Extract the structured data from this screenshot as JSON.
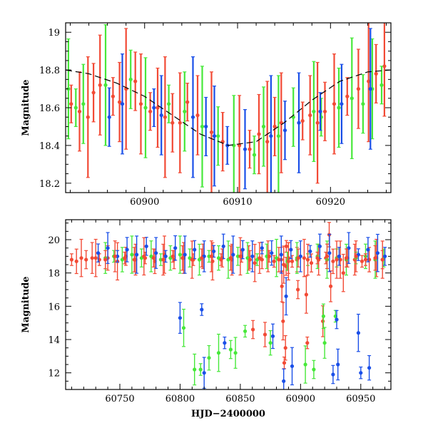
{
  "chart_data": [
    {
      "type": "scatter",
      "panel": "top",
      "xlabel": "",
      "ylabel": "Magnitude",
      "xlim": [
        60891.5,
        60926.5
      ],
      "ylim": [
        19.05,
        18.15
      ],
      "y_inverted": true,
      "x_ticks": [
        60900,
        60910,
        60920
      ],
      "x_tick_labels": [
        "60900",
        "60910",
        "60920"
      ],
      "y_ticks": [
        18.2,
        18.4,
        18.6,
        18.8,
        19.0
      ],
      "y_tick_labels": [
        "18.2",
        "18.4",
        "18.6",
        "18.8",
        "19"
      ],
      "colors": {
        "red": "#f24a35",
        "green": "#47e83a",
        "blue": "#1a4fe8",
        "model": "#000000"
      },
      "series": [
        {
          "name": "red",
          "color": "#f24a35",
          "x": [
            60892.1,
            60893.0,
            60893.9,
            60894.5,
            60895.2,
            60896.6,
            60897.3,
            60898.0,
            60899.0,
            60899.6,
            60900.6,
            60901.4,
            60902.2,
            60903.0,
            60903.8,
            60904.6,
            60905.7,
            60907.2,
            60908.4,
            60910.2,
            60911.3,
            60912.3,
            60913.2,
            60914.0,
            60914.7,
            60917.0,
            60917.8,
            60918.6,
            60919.4,
            60920.4,
            60921.8,
            60923.0,
            60924.1,
            60924.9,
            60925.8
          ],
          "y": [
            18.62,
            18.58,
            18.55,
            18.68,
            18.72,
            18.66,
            18.63,
            18.7,
            18.74,
            18.62,
            18.58,
            18.6,
            18.55,
            18.52,
            18.52,
            18.63,
            18.56,
            18.47,
            18.42,
            18.4,
            18.38,
            18.46,
            18.42,
            18.5,
            18.52,
            18.53,
            18.56,
            18.52,
            18.58,
            18.62,
            18.66,
            18.7,
            18.74,
            18.78,
            18.82
          ]
        },
        {
          "name": "green",
          "color": "#47e83a",
          "x": [
            60891.8,
            60892.6,
            60893.4,
            60895.8,
            60898.5,
            60900.1,
            60902.6,
            60904.3,
            60906.2,
            60907.9,
            60909.6,
            60911.8,
            60912.8,
            60914.4,
            60916.0,
            60918.2,
            60919.0,
            60920.9,
            60922.3,
            60923.5,
            60924.5,
            60925.5
          ],
          "y": [
            18.7,
            18.6,
            18.62,
            18.72,
            18.75,
            18.6,
            18.62,
            18.58,
            18.5,
            18.45,
            18.4,
            18.35,
            18.5,
            18.45,
            18.55,
            18.58,
            18.55,
            18.6,
            18.65,
            18.62,
            18.7,
            18.72
          ]
        },
        {
          "name": "blue",
          "color": "#1a4fe8",
          "x": [
            60896.2,
            60897.6,
            60901.0,
            60901.8,
            60905.2,
            60906.6,
            60907.5,
            60908.9,
            60910.8,
            60913.6,
            60915.1,
            60916.6,
            60918.9,
            60921.2,
            60924.3
          ],
          "y": [
            18.55,
            18.62,
            18.6,
            18.56,
            18.55,
            18.5,
            18.45,
            18.4,
            18.38,
            18.45,
            18.48,
            18.52,
            18.58,
            18.62,
            18.7
          ]
        },
        {
          "name": "model",
          "color": "#000000",
          "style": "dashed",
          "type": "line",
          "x": [
            60891.5,
            60894,
            60897,
            60900,
            60903,
            60906,
            60909,
            60912,
            60915,
            60918,
            60921,
            60924,
            60926.5
          ],
          "y": [
            18.8,
            18.78,
            18.73,
            18.66,
            18.56,
            18.46,
            18.4,
            18.42,
            18.52,
            18.64,
            18.74,
            18.79,
            18.8
          ]
        }
      ]
    },
    {
      "type": "scatter",
      "panel": "bottom",
      "xlabel": "HJD−2400000",
      "ylabel": "Magnitude",
      "xlim": [
        60705,
        60975
      ],
      "ylim": [
        21.2,
        11.0
      ],
      "y_inverted": true,
      "x_ticks": [
        60750,
        60800,
        60850,
        60900,
        60950
      ],
      "x_tick_labels": [
        "60750",
        "60800",
        "60850",
        "60900",
        "60950"
      ],
      "y_ticks": [
        12,
        14,
        16,
        18,
        20
      ],
      "y_tick_labels": [
        "12",
        "14",
        "16",
        "18",
        "20"
      ],
      "series": [
        {
          "name": "red",
          "color": "#f24a35",
          "x": [
            60710,
            60714,
            60718,
            60722,
            60727,
            60733,
            60740,
            60748,
            60755,
            60763,
            60771,
            60779,
            60787,
            60795,
            60803,
            60811,
            60819,
            60827,
            60835,
            60843,
            60851,
            60857,
            60862,
            60868,
            60873,
            60878,
            60884,
            60886,
            60888,
            60890,
            60893,
            60897,
            60903,
            60909,
            60915,
            60921,
            60927,
            60933,
            60939,
            60945,
            60951,
            60957,
            60963,
            60968,
            60884.5,
            60886.5,
            60887.5,
            60885.5,
            60897.8,
            60918.5,
            60905.6,
            60870.5,
            60935.5,
            60860.5,
            60925,
            60888.2,
            60923.8,
            60904.8
          ],
          "y": [
            18.8,
            18.7,
            18.9,
            18.8,
            18.9,
            18.8,
            18.9,
            18.7,
            19.0,
            18.8,
            18.9,
            18.7,
            19.1,
            18.8,
            18.9,
            18.8,
            19.0,
            18.7,
            18.9,
            18.8,
            19.0,
            18.9,
            18.6,
            18.8,
            19.0,
            18.7,
            18.8,
            18.5,
            18.4,
            18.9,
            18.7,
            18.8,
            18.9,
            18.6,
            18.8,
            18.9,
            18.7,
            18.8,
            18.9,
            18.8,
            18.7,
            18.8,
            18.9,
            18.8,
            17.2,
            12.6,
            13.5,
            15.1,
            17.0,
            15.1,
            13.8,
            14.3,
            18.0,
            14.6,
            17.2,
            19.6,
            20.3,
            16.7
          ]
        },
        {
          "name": "green",
          "color": "#47e83a",
          "x": [
            60738,
            60745,
            60752,
            60760,
            60768,
            60776,
            60784,
            60792,
            60800,
            60808,
            60816,
            60824,
            60832,
            60840,
            60848,
            60856,
            60864,
            60872,
            60880,
            60889,
            60897,
            60906,
            60914,
            60922,
            60930,
            60938,
            60946,
            60954,
            60962,
            60969,
            60812,
            60817,
            60824,
            60832,
            60842,
            60846,
            60854,
            60875,
            60904,
            60911,
            60920,
            60929,
            60919,
            60803
          ],
          "y": [
            18.9,
            19.0,
            18.8,
            19.1,
            18.9,
            19.0,
            18.8,
            18.9,
            19.1,
            18.9,
            18.8,
            19.0,
            18.9,
            18.8,
            19.0,
            18.9,
            18.8,
            19.0,
            18.9,
            18.7,
            18.9,
            18.8,
            19.0,
            18.8,
            18.9,
            18.8,
            18.9,
            19.0,
            18.8,
            18.9,
            12.2,
            12.2,
            12.9,
            13.2,
            13.4,
            13.2,
            14.5,
            13.8,
            12.5,
            12.2,
            13.8,
            15.4,
            15.4,
            14.7
          ]
        },
        {
          "name": "blue",
          "color": "#1a4fe8",
          "x": [
            60732,
            60740,
            60748,
            60756,
            60764,
            60772,
            60780,
            60788,
            60796,
            60804,
            60812,
            60820,
            60828,
            60836,
            60844,
            60852,
            60860,
            60868,
            60876,
            60884,
            60892,
            60900,
            60908,
            60916,
            60924,
            60932,
            60940,
            60948,
            60956,
            60964,
            60970,
            60820,
            60837,
            60886,
            60893,
            60927,
            60931,
            60950,
            60957,
            60948,
            60930,
            60800,
            60818,
            60877,
            60888
          ],
          "y": [
            19.2,
            19.5,
            19.0,
            19.4,
            19.1,
            19.6,
            19.2,
            19.0,
            19.5,
            19.1,
            19.4,
            19.0,
            19.3,
            19.6,
            19.1,
            19.4,
            19.0,
            19.5,
            19.2,
            19.1,
            19.4,
            19.0,
            19.3,
            19.6,
            19.2,
            19.0,
            19.5,
            19.1,
            19.4,
            19.2,
            19.0,
            12.0,
            13.8,
            11.5,
            12.4,
            11.9,
            12.5,
            12.0,
            12.3,
            14.4,
            15.2,
            15.3,
            15.8,
            14.2,
            16.6
          ]
        },
        {
          "name": "red_overlay",
          "color": "#f24a35",
          "x": [
            60730,
            60738,
            60746,
            60754,
            60762,
            60770,
            60778,
            60786,
            60794,
            60802,
            60810,
            60818,
            60826,
            60834,
            60842,
            60850,
            60858,
            60866,
            60874,
            60882,
            60890,
            60898,
            60906,
            60914,
            60922,
            60930,
            60938,
            60946,
            60954,
            60962,
            60968
          ],
          "y": [
            18.9,
            18.8,
            19.0,
            18.9,
            18.8,
            19.0,
            18.9,
            18.8,
            19.0,
            18.9,
            18.8,
            18.9,
            19.0,
            18.8,
            18.9,
            19.0,
            18.8,
            18.9,
            19.0,
            18.8,
            18.7,
            18.9,
            18.8,
            18.9,
            19.0,
            18.8,
            18.9,
            19.0,
            18.8,
            18.9,
            18.8
          ]
        }
      ]
    }
  ]
}
